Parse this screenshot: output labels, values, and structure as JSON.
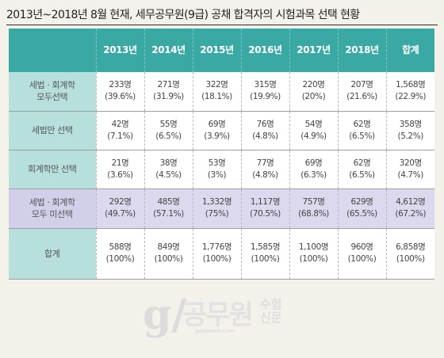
{
  "title": "2013년~2018년 8월 현재, 세무공무원(9급) 공채 합격자의 시험과목 선택 현황",
  "table": {
    "header": [
      "",
      "2013년",
      "2014년",
      "2015년",
      "2016년",
      "2017년",
      "2018년",
      "합계"
    ],
    "rows": [
      {
        "label_lines": [
          "세법 · 회계학",
          "모두선택"
        ],
        "cells": [
          {
            "count": "233명",
            "pct": "(39.6%)"
          },
          {
            "count": "271명",
            "pct": "(31.9%)"
          },
          {
            "count": "322명",
            "pct": "(18.1%)"
          },
          {
            "count": "315명",
            "pct": "(19.9%)"
          },
          {
            "count": "220명",
            "pct": "(20%)"
          },
          {
            "count": "207명",
            "pct": "(21.6%)"
          },
          {
            "count": "1,568명",
            "pct": "(22.9%)"
          }
        ]
      },
      {
        "label_lines": [
          "세법만 선택"
        ],
        "cells": [
          {
            "count": "42명",
            "pct": "(7.1%)"
          },
          {
            "count": "55명",
            "pct": "(6.5%)"
          },
          {
            "count": "69명",
            "pct": "(3.9%)"
          },
          {
            "count": "76명",
            "pct": "(4.8%)"
          },
          {
            "count": "54명",
            "pct": "(4.9%)"
          },
          {
            "count": "62명",
            "pct": "(6.5%)"
          },
          {
            "count": "358명",
            "pct": "(5.2%)"
          }
        ]
      },
      {
        "label_lines": [
          "회계학만 선택"
        ],
        "cells": [
          {
            "count": "21명",
            "pct": "(3.6%)"
          },
          {
            "count": "38명",
            "pct": "(4.5%)"
          },
          {
            "count": "53명",
            "pct": "(3%)"
          },
          {
            "count": "77명",
            "pct": "(4.8%)"
          },
          {
            "count": "69명",
            "pct": "(6.3%)"
          },
          {
            "count": "62명",
            "pct": "(6.5%)"
          },
          {
            "count": "320명",
            "pct": "(4.7%)"
          }
        ]
      },
      {
        "label_lines": [
          "세법 · 회계학",
          "모두 미선택"
        ],
        "cells": [
          {
            "count": "292명",
            "pct": "(49.7%)"
          },
          {
            "count": "485명",
            "pct": "(57.1%)"
          },
          {
            "count": "1,332명",
            "pct": "(75%)"
          },
          {
            "count": "1,117명",
            "pct": "(70.5%)"
          },
          {
            "count": "757명",
            "pct": "(68.8%)"
          },
          {
            "count": "629명",
            "pct": "(65.5%)"
          },
          {
            "count": "4,612명",
            "pct": "(67.2%)"
          }
        ]
      },
      {
        "label_lines": [
          "합계"
        ],
        "cells": [
          {
            "count": "588명",
            "pct": "(100%)"
          },
          {
            "count": "849명",
            "pct": "(100%)"
          },
          {
            "count": "1,776명",
            "pct": "(100%)"
          },
          {
            "count": "1,585명",
            "pct": "(100%)"
          },
          {
            "count": "1,100명",
            "pct": "(100%)"
          },
          {
            "count": "960명",
            "pct": "(100%)"
          },
          {
            "count": "6,858명",
            "pct": "(100%)"
          }
        ]
      }
    ]
  },
  "watermark": {
    "mark": "g/",
    "name": "공무원",
    "sub_lines": [
      "수험",
      "신문"
    ],
    "url": "gosiweek.com"
  },
  "colors": {
    "header_bg": "#3aa9a3",
    "label_bg": "#b7e0dd",
    "highlight_row_bg": "#dcd9ef",
    "page_bg": "#f3f1ea"
  }
}
